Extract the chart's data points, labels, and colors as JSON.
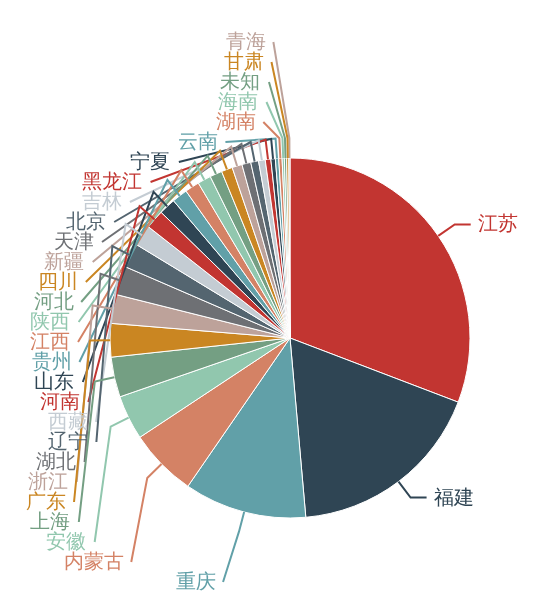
{
  "chart_data": {
    "type": "pie",
    "categories": [
      "江苏",
      "福建",
      "重庆",
      "内蒙古",
      "安徽",
      "上海",
      "广东",
      "浙江",
      "湖北",
      "辽宁",
      "西藏",
      "河南",
      "山东",
      "贵州",
      "江西",
      "陕西",
      "河北",
      "四川",
      "新疆",
      "天津",
      "北京",
      "吉林",
      "黑龙江",
      "宁夏",
      "云南",
      "湖南",
      "海南",
      "未知",
      "甘肃",
      "青海"
    ],
    "values": [
      30.8,
      17.8,
      11.0,
      6.1,
      4.0,
      3.6,
      3.0,
      2.6,
      2.6,
      2.2,
      1.9,
      1.7,
      1.5,
      1.4,
      1.3,
      1.2,
      1.1,
      1.0,
      0.9,
      0.8,
      0.7,
      0.6,
      0.5,
      0.4,
      0.3,
      0.3,
      0.2,
      0.2,
      0.2,
      0.1
    ],
    "colors": [
      "#c23531",
      "#2f4554",
      "#61a0a8",
      "#d48265",
      "#91c7ae",
      "#749f83",
      "#ca8622",
      "#bda29a",
      "#6e7074",
      "#546570",
      "#c4ccd3",
      "#c23531",
      "#2f4554",
      "#61a0a8",
      "#d48265",
      "#91c7ae",
      "#749f83",
      "#ca8622",
      "#bda29a",
      "#6e7074",
      "#546570",
      "#c4ccd3",
      "#c23531",
      "#2f4554",
      "#61a0a8",
      "#d48265",
      "#91c7ae",
      "#749f83",
      "#ca8622",
      "#bda29a"
    ]
  }
}
